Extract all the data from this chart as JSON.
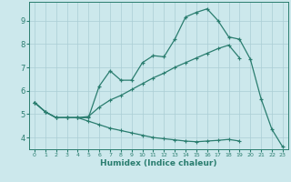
{
  "xlabel": "Humidex (Indice chaleur)",
  "bg_color": "#cce8ec",
  "line_color": "#2a7d6f",
  "grid_color": "#aacdd4",
  "x_values": [
    0,
    1,
    2,
    3,
    4,
    5,
    6,
    7,
    8,
    9,
    10,
    11,
    12,
    13,
    14,
    15,
    16,
    17,
    18,
    19,
    20,
    21,
    22,
    23
  ],
  "line1": [
    5.5,
    5.1,
    4.85,
    4.85,
    4.85,
    4.85,
    6.2,
    6.85,
    6.45,
    6.45,
    7.2,
    7.5,
    7.45,
    8.2,
    9.15,
    9.35,
    9.5,
    9.0,
    8.3,
    8.2,
    7.35,
    5.65,
    4.35,
    3.6
  ],
  "line2": [
    5.5,
    5.1,
    4.85,
    4.85,
    4.85,
    4.9,
    5.3,
    5.6,
    5.8,
    6.05,
    6.3,
    6.55,
    6.75,
    7.0,
    7.2,
    7.4,
    7.6,
    7.8,
    7.95,
    7.4,
    null,
    null,
    null,
    null
  ],
  "line3": [
    5.5,
    5.1,
    4.85,
    4.85,
    4.85,
    4.7,
    4.55,
    4.4,
    4.3,
    4.2,
    4.1,
    4.0,
    3.95,
    3.9,
    3.85,
    3.82,
    3.85,
    3.88,
    3.92,
    3.85,
    null,
    null,
    null,
    null
  ],
  "xlim": [
    -0.5,
    23.5
  ],
  "ylim": [
    3.5,
    9.8
  ],
  "yticks": [
    4,
    5,
    6,
    7,
    8,
    9
  ],
  "xticks": [
    0,
    1,
    2,
    3,
    4,
    5,
    6,
    7,
    8,
    9,
    10,
    11,
    12,
    13,
    14,
    15,
    16,
    17,
    18,
    19,
    20,
    21,
    22,
    23
  ]
}
